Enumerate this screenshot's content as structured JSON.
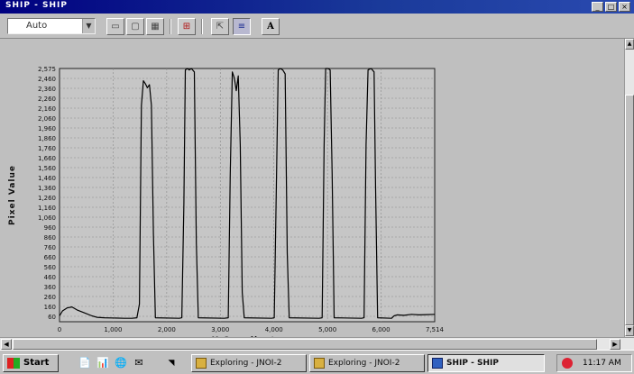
{
  "window": {
    "title": "SHIP - SHIP",
    "controls": [
      "_",
      "□",
      "×"
    ]
  },
  "toolbar": {
    "zoom_value": "Auto",
    "buttons": [
      {
        "name": "view-icon",
        "glyph": "▭"
      },
      {
        "name": "copy-icon",
        "glyph": "▢"
      },
      {
        "name": "print-icon",
        "glyph": "▦"
      },
      {
        "name": "grid-icon",
        "glyph": "⊞"
      },
      {
        "name": "export-icon",
        "glyph": "⇱"
      },
      {
        "name": "chart-icon",
        "glyph": "≡"
      },
      {
        "name": "text-icon",
        "glyph": "A"
      }
    ]
  },
  "chart_data": {
    "type": "line",
    "title": "",
    "xlabel": "X Coordinate",
    "ylabel": "Pixel Value",
    "xlim": [
      0,
      7514
    ],
    "ylim": [
      0,
      2575
    ],
    "x_ticks": [
      "0",
      "1,000",
      "2,000",
      "3,000",
      "4,000",
      "5,000",
      "6,000",
      "7,514"
    ],
    "y_ticks": [
      "2,575",
      "2,460",
      "2,360",
      "2,260",
      "2,160",
      "2,060",
      "1,960",
      "1,860",
      "1,760",
      "1,660",
      "1,560",
      "1,460",
      "1,360",
      "1,260",
      "1,160",
      "1,060",
      "960",
      "860",
      "760",
      "660",
      "560",
      "460",
      "360",
      "260",
      "160",
      "60"
    ],
    "grid": true,
    "series": [
      {
        "color": "#000000",
        "points": [
          [
            0,
            60
          ],
          [
            60,
            110
          ],
          [
            150,
            140
          ],
          [
            250,
            150
          ],
          [
            350,
            120
          ],
          [
            500,
            90
          ],
          [
            650,
            60
          ],
          [
            750,
            45
          ],
          [
            900,
            40
          ],
          [
            1300,
            35
          ],
          [
            1450,
            35
          ],
          [
            1550,
            40
          ],
          [
            1600,
            180
          ],
          [
            1640,
            2200
          ],
          [
            1680,
            2450
          ],
          [
            1720,
            2420
          ],
          [
            1760,
            2380
          ],
          [
            1800,
            2410
          ],
          [
            1840,
            2200
          ],
          [
            1880,
            900
          ],
          [
            1920,
            40
          ],
          [
            2400,
            35
          ],
          [
            2450,
            40
          ],
          [
            2490,
            1200
          ],
          [
            2520,
            2560
          ],
          [
            2560,
            2575
          ],
          [
            2600,
            2560
          ],
          [
            2640,
            2575
          ],
          [
            2700,
            2540
          ],
          [
            2740,
            800
          ],
          [
            2780,
            40
          ],
          [
            3300,
            35
          ],
          [
            3380,
            40
          ],
          [
            3420,
            1500
          ],
          [
            3460,
            2540
          ],
          [
            3500,
            2480
          ],
          [
            3540,
            2350
          ],
          [
            3580,
            2500
          ],
          [
            3620,
            1800
          ],
          [
            3660,
            300
          ],
          [
            3700,
            40
          ],
          [
            4250,
            35
          ],
          [
            4300,
            40
          ],
          [
            4340,
            1300
          ],
          [
            4380,
            2560
          ],
          [
            4420,
            2575
          ],
          [
            4470,
            2560
          ],
          [
            4520,
            2520
          ],
          [
            4560,
            700
          ],
          [
            4600,
            40
          ],
          [
            5200,
            35
          ],
          [
            5260,
            40
          ],
          [
            5300,
            1800
          ],
          [
            5330,
            2575
          ],
          [
            5380,
            2575
          ],
          [
            5420,
            2560
          ],
          [
            5460,
            1500
          ],
          [
            5500,
            40
          ],
          [
            6050,
            35
          ],
          [
            6100,
            40
          ],
          [
            6140,
            1800
          ],
          [
            6180,
            2560
          ],
          [
            6240,
            2575
          ],
          [
            6300,
            2540
          ],
          [
            6330,
            1400
          ],
          [
            6370,
            40
          ],
          [
            6650,
            35
          ],
          [
            6700,
            60
          ],
          [
            6760,
            70
          ],
          [
            6900,
            65
          ],
          [
            7050,
            75
          ],
          [
            7200,
            70
          ],
          [
            7350,
            72
          ],
          [
            7514,
            75
          ]
        ]
      }
    ]
  },
  "taskbar": {
    "start_label": "Start",
    "quick_icons": [
      "📄",
      "📊",
      "🌐",
      "✉",
      "◥"
    ],
    "tasks": [
      {
        "label": "Exploring - JNOI-2",
        "active": false
      },
      {
        "label": "Exploring - JNOI-2",
        "active": false
      },
      {
        "label": "SHIP - SHIP",
        "active": true
      }
    ],
    "clock": "11:17 AM"
  }
}
